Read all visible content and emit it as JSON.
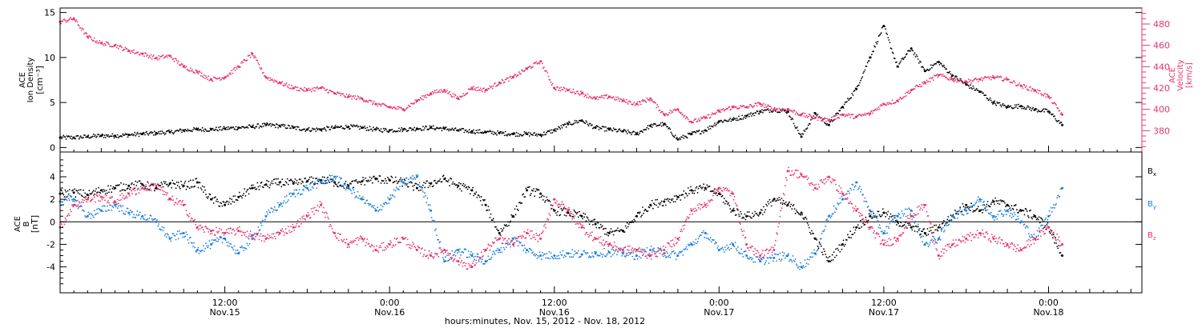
{
  "figure": {
    "xaxis_title": "hours:minutes, Nov. 15, 2012 - Nov. 18, 2012",
    "time_ticks": [
      {
        "hour": 12,
        "time": "12:00",
        "date": "Nov.15"
      },
      {
        "hour": 24,
        "time": "0:00",
        "date": "Nov.16"
      },
      {
        "hour": 36,
        "time": "12:00",
        "date": "Nov.16"
      },
      {
        "hour": 48,
        "time": "0:00",
        "date": "Nov.17"
      },
      {
        "hour": 60,
        "time": "12:00",
        "date": "Nov.17"
      },
      {
        "hour": 72,
        "time": "0:00",
        "date": "Nov.18"
      }
    ]
  },
  "colors": {
    "black": "#000000",
    "pink": "#e8336b",
    "blue": "#1b7fe0"
  },
  "chart_data": [
    {
      "type": "scatter",
      "panel": "top",
      "x_range_hours": [
        0,
        78.8
      ],
      "x_unit": "hours from 2012-11-15 00:00 UT",
      "ylabel_left": [
        "ACE",
        "Ion Density",
        "[cm⁻³]"
      ],
      "ylabel_right": [
        "ACE",
        "Velocity",
        "[km/s]"
      ],
      "y_left_ticks": [
        0,
        5,
        10,
        15
      ],
      "y_left_range": [
        -0.5,
        15.5
      ],
      "y_right_ticks": [
        380,
        400,
        420,
        440,
        460,
        480
      ],
      "y_right_range": [
        360,
        495
      ],
      "series": [
        {
          "axis": "left",
          "color": "black",
          "x": [
            0,
            1,
            2,
            3,
            4,
            5,
            6,
            7,
            8,
            9,
            10,
            11,
            12,
            13,
            14,
            15,
            16,
            17,
            18,
            19,
            20,
            21,
            22,
            23,
            24,
            25,
            26,
            27,
            28,
            29,
            30,
            31,
            32,
            33,
            34,
            35,
            36,
            37,
            38,
            39,
            40,
            41,
            42,
            43,
            44,
            45,
            46,
            47,
            48,
            49,
            50,
            51,
            52,
            53,
            54,
            55,
            56,
            57,
            58,
            59,
            60,
            61,
            62,
            63,
            64,
            65,
            66,
            67,
            68,
            69,
            70,
            71,
            72,
            73
          ],
          "y": [
            1.1,
            1.1,
            1.2,
            1.3,
            1.3,
            1.4,
            1.5,
            1.6,
            1.7,
            1.9,
            2.0,
            2.0,
            2.1,
            2.2,
            2.3,
            2.5,
            2.4,
            2.2,
            2.0,
            2.0,
            2.2,
            2.3,
            2.2,
            2.0,
            1.9,
            2.0,
            2.1,
            2.2,
            2.1,
            1.9,
            1.8,
            1.7,
            1.6,
            1.5,
            1.5,
            1.4,
            1.9,
            2.6,
            3.0,
            2.2,
            2.0,
            1.8,
            1.5,
            2.4,
            2.6,
            0.9,
            1.5,
            1.9,
            2.9,
            3.1,
            3.5,
            4.0,
            4.2,
            4.0,
            1.2,
            3.8,
            2.5,
            4.5,
            6.5,
            10.0,
            13.5,
            9.0,
            11.0,
            8.5,
            9.5,
            8.0,
            7.0,
            6.2,
            5.0,
            4.5,
            4.6,
            4.2,
            4.0,
            2.5
          ]
        },
        {
          "axis": "right",
          "color": "pink",
          "x": [
            0,
            1,
            2,
            3,
            4,
            5,
            6,
            7,
            8,
            9,
            10,
            11,
            12,
            13,
            14,
            15,
            16,
            17,
            18,
            19,
            20,
            21,
            22,
            23,
            24,
            25,
            26,
            27,
            28,
            29,
            30,
            31,
            32,
            33,
            34,
            35,
            36,
            37,
            38,
            39,
            40,
            41,
            42,
            43,
            44,
            45,
            46,
            47,
            48,
            49,
            50,
            51,
            52,
            53,
            54,
            55,
            56,
            57,
            58,
            59,
            60,
            61,
            62,
            63,
            64,
            65,
            66,
            67,
            68,
            69,
            70,
            71,
            72,
            73
          ],
          "y": [
            482,
            485,
            468,
            462,
            460,
            455,
            452,
            448,
            450,
            440,
            435,
            428,
            430,
            440,
            452,
            430,
            425,
            420,
            418,
            420,
            415,
            412,
            410,
            405,
            402,
            400,
            408,
            415,
            418,
            410,
            420,
            418,
            425,
            430,
            438,
            445,
            420,
            418,
            415,
            410,
            412,
            408,
            405,
            410,
            395,
            400,
            388,
            392,
            398,
            402,
            402,
            405,
            400,
            400,
            395,
            392,
            390,
            395,
            393,
            396,
            405,
            408,
            418,
            425,
            432,
            428,
            426,
            428,
            430,
            428,
            422,
            418,
            412,
            395
          ]
        }
      ]
    },
    {
      "type": "scatter",
      "panel": "bottom",
      "x_range_hours": [
        0,
        78.8
      ],
      "x_unit": "hours from 2012-11-15 00:00 UT",
      "ylabel": [
        "ACE",
        "B",
        "[nT]"
      ],
      "y_ticks": [
        -4,
        -2,
        0,
        2,
        4
      ],
      "y_range": [
        -6.3,
        6.2
      ],
      "zero_line": true,
      "series": [
        {
          "name": "Bx",
          "color": "black",
          "x": [
            0,
            1,
            2,
            3,
            4,
            5,
            6,
            7,
            8,
            9,
            10,
            11,
            12,
            13,
            14,
            15,
            16,
            17,
            18,
            19,
            20,
            21,
            22,
            23,
            24,
            25,
            26,
            27,
            28,
            29,
            30,
            31,
            32,
            33,
            34,
            35,
            36,
            37,
            38,
            39,
            40,
            41,
            42,
            43,
            44,
            45,
            46,
            47,
            48,
            49,
            50,
            51,
            52,
            53,
            54,
            55,
            56,
            57,
            58,
            59,
            60,
            61,
            62,
            63,
            64,
            65,
            66,
            67,
            68,
            69,
            70,
            71,
            72,
            73
          ],
          "y": [
            2.5,
            2.6,
            2.4,
            2.8,
            3.0,
            3.2,
            3.3,
            3.0,
            3.4,
            3.2,
            3.5,
            2.0,
            1.5,
            2.2,
            3.0,
            3.3,
            3.5,
            3.4,
            3.6,
            3.7,
            3.5,
            3.2,
            3.6,
            3.8,
            3.7,
            3.5,
            3.0,
            3.4,
            3.8,
            3.2,
            2.8,
            1.5,
            -1.0,
            0.5,
            2.8,
            2.5,
            1.0,
            0.8,
            0.5,
            -0.2,
            -1.0,
            -0.8,
            0.5,
            1.5,
            1.8,
            2.2,
            2.8,
            3.0,
            2.5,
            1.0,
            0.5,
            0.8,
            2.0,
            1.5,
            0.8,
            -1.5,
            -3.5,
            -2.0,
            -0.5,
            0.5,
            0.8,
            0.0,
            -0.5,
            -1.0,
            -0.5,
            0.5,
            1.5,
            1.0,
            1.8,
            1.5,
            1.0,
            0.5,
            -0.5,
            -3.0
          ]
        },
        {
          "name": "By",
          "color": "blue",
          "x": [
            0,
            1,
            2,
            3,
            4,
            5,
            6,
            7,
            8,
            9,
            10,
            11,
            12,
            13,
            14,
            15,
            16,
            17,
            18,
            19,
            20,
            21,
            22,
            23,
            24,
            25,
            26,
            27,
            28,
            29,
            30,
            31,
            32,
            33,
            34,
            35,
            36,
            37,
            38,
            39,
            40,
            41,
            42,
            43,
            44,
            45,
            46,
            47,
            48,
            49,
            50,
            51,
            52,
            53,
            54,
            55,
            56,
            57,
            58,
            59,
            60,
            61,
            62,
            63,
            64,
            65,
            66,
            67,
            68,
            69,
            70,
            71,
            72,
            73
          ],
          "y": [
            1.8,
            2.0,
            0.5,
            1.0,
            1.5,
            0.8,
            0.5,
            0.0,
            -1.5,
            -1.0,
            -2.5,
            -2.0,
            -1.5,
            -2.8,
            -1.5,
            0.5,
            1.5,
            2.5,
            3.0,
            3.5,
            4.0,
            3.0,
            2.0,
            1.0,
            2.0,
            3.5,
            4.0,
            1.0,
            -3.5,
            -2.5,
            -3.0,
            -3.5,
            -2.5,
            -1.5,
            -2.5,
            -3.0,
            -3.0,
            -2.8,
            -2.9,
            -2.8,
            -2.7,
            -2.8,
            -3.0,
            -2.5,
            -2.8,
            -3.0,
            -2.0,
            -1.0,
            -2.5,
            -2.0,
            -3.0,
            -3.5,
            -3.2,
            -3.0,
            -4.0,
            -2.8,
            0.5,
            2.0,
            3.5,
            1.0,
            -1.0,
            0.5,
            1.0,
            -2.0,
            -1.5,
            0.5,
            1.0,
            2.0,
            0.5,
            1.0,
            0.0,
            -1.5,
            0.5,
            3.0
          ]
        },
        {
          "name": "Bz",
          "color": "pink",
          "x": [
            0,
            1,
            2,
            3,
            4,
            5,
            6,
            7,
            8,
            9,
            10,
            11,
            12,
            13,
            14,
            15,
            16,
            17,
            18,
            19,
            20,
            21,
            22,
            23,
            24,
            25,
            26,
            27,
            28,
            29,
            30,
            31,
            32,
            33,
            34,
            35,
            36,
            37,
            38,
            39,
            40,
            41,
            42,
            43,
            44,
            45,
            46,
            47,
            48,
            49,
            50,
            51,
            52,
            53,
            54,
            55,
            56,
            57,
            58,
            59,
            60,
            61,
            62,
            63,
            64,
            65,
            66,
            67,
            68,
            69,
            70,
            71,
            72,
            73
          ],
          "y": [
            -0.5,
            1.5,
            2.0,
            2.2,
            1.8,
            2.5,
            3.0,
            3.2,
            2.0,
            1.5,
            -0.5,
            -0.8,
            -1.0,
            -0.8,
            -1.2,
            -1.5,
            -1.0,
            -0.5,
            0.5,
            1.5,
            -1.0,
            -2.0,
            -1.5,
            -2.5,
            -2.0,
            -1.5,
            -2.5,
            -3.0,
            -2.5,
            -3.5,
            -4.0,
            -2.5,
            -1.5,
            -2.0,
            -1.0,
            -1.5,
            2.0,
            1.0,
            -0.5,
            -1.5,
            -2.0,
            -2.5,
            -2.5,
            -3.0,
            -2.5,
            -1.5,
            1.0,
            1.5,
            3.0,
            2.5,
            -2.0,
            -3.0,
            -2.5,
            4.5,
            4.2,
            3.0,
            4.0,
            2.5,
            1.0,
            -0.5,
            -2.0,
            -1.5,
            0.5,
            1.5,
            -3.0,
            -2.0,
            -1.5,
            -1.0,
            -1.5,
            -2.0,
            -2.5,
            -1.5,
            -0.5,
            -2.0
          ]
        }
      ],
      "legend": {
        "placement": "right",
        "entries": [
          {
            "label": "B",
            "sub": "x",
            "color": "black"
          },
          {
            "label": "B",
            "sub": "y",
            "color": "blue"
          },
          {
            "label": "B",
            "sub": "z",
            "color": "pink"
          }
        ]
      }
    }
  ]
}
